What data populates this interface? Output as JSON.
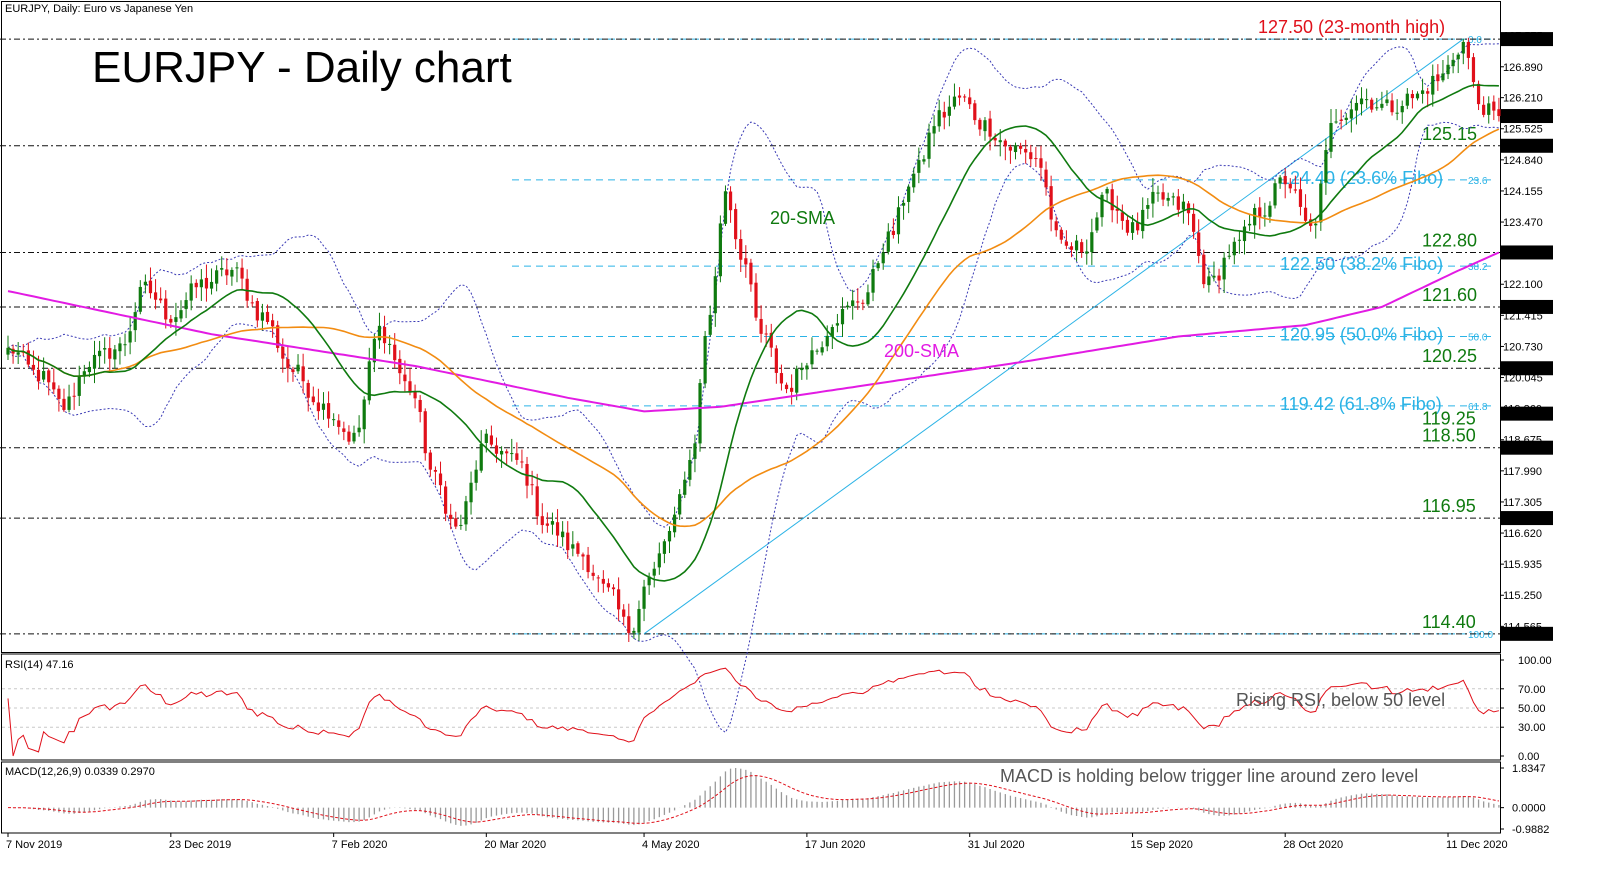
{
  "header": "EURJPY, Daily:  Euro vs Japanese Yen",
  "chart_title": "EURJPY - Daily chart",
  "colors": {
    "bull": "#0f7a0f",
    "bear": "#e0101a",
    "sma20": "#0f7a0f",
    "sma50": "#f28c12",
    "sma200": "#e21be3",
    "bollinger": "#3b3bb5",
    "fibo": "#2bb3e6",
    "level": "#111111",
    "rsi": "#e0101a",
    "macd_hist": "#9a9a9a",
    "macd_signal": "#e0101a",
    "annotation_green": "#0f7a0f",
    "annotation_red": "#e0101a",
    "annotation_blue": "#2bb3e6",
    "annotation_magenta": "#e21be3",
    "annotation_gray": "#555555"
  },
  "chart_data": [
    {
      "type": "candlestick",
      "title": "EURJPY - Daily chart",
      "ylim": [
        114.0,
        127.7
      ],
      "price_axis_ticks": [
        "127.575",
        "126.890",
        "126.210",
        "125.525",
        "124.840",
        "124.155",
        "123.470",
        "122.785",
        "122.100",
        "121.415",
        "120.730",
        "120.045",
        "119.360",
        "118.675",
        "117.990",
        "117.305",
        "116.620",
        "115.935",
        "115.250",
        "114.565"
      ],
      "x_ticks": [
        "7 Nov 2019",
        "23 Dec 2019",
        "7 Feb 2020",
        "20 Mar 2020",
        "4 May 2020",
        "17 Jun 2020",
        "31 Jul 2020",
        "15 Sep 2020",
        "28 Oct 2020",
        "11 Dec 2020"
      ],
      "x_tick_index": [
        0,
        32,
        64,
        94,
        125,
        157,
        189,
        221,
        251,
        283
      ],
      "anchors": [
        [
          0,
          120.7
        ],
        [
          6,
          120.1
        ],
        [
          11,
          119.4
        ],
        [
          16,
          120.4
        ],
        [
          22,
          120.7
        ],
        [
          27,
          122.0
        ],
        [
          32,
          121.4
        ],
        [
          38,
          122.1
        ],
        [
          44,
          122.4
        ],
        [
          50,
          121.4
        ],
        [
          56,
          120.2
        ],
        [
          62,
          119.4
        ],
        [
          68,
          118.7
        ],
        [
          73,
          121.1
        ],
        [
          79,
          119.8
        ],
        [
          84,
          117.8
        ],
        [
          88,
          116.7
        ],
        [
          94,
          118.6
        ],
        [
          100,
          118.2
        ],
        [
          106,
          116.8
        ],
        [
          112,
          116.2
        ],
        [
          118,
          115.3
        ],
        [
          122,
          114.5
        ],
        [
          126,
          115.6
        ],
        [
          130,
          116.6
        ],
        [
          134,
          118.2
        ],
        [
          138,
          121.5
        ],
        [
          141,
          124.2
        ],
        [
          144,
          122.8
        ],
        [
          148,
          121.0
        ],
        [
          153,
          119.8
        ],
        [
          158,
          120.6
        ],
        [
          163,
          121.4
        ],
        [
          168,
          121.8
        ],
        [
          173,
          123.1
        ],
        [
          178,
          124.5
        ],
        [
          183,
          125.8
        ],
        [
          187,
          126.2
        ],
        [
          192,
          125.6
        ],
        [
          197,
          125.1
        ],
        [
          202,
          124.9
        ],
        [
          207,
          122.9
        ],
        [
          211,
          122.9
        ],
        [
          216,
          124.0
        ],
        [
          221,
          123.3
        ],
        [
          226,
          124.0
        ],
        [
          231,
          123.8
        ],
        [
          236,
          122.1
        ],
        [
          241,
          122.9
        ],
        [
          246,
          123.7
        ],
        [
          251,
          124.4
        ],
        [
          256,
          123.3
        ],
        [
          261,
          125.8
        ],
        [
          266,
          126.2
        ],
        [
          271,
          126.0
        ],
        [
          276,
          126.2
        ],
        [
          281,
          126.6
        ],
        [
          286,
          127.4
        ],
        [
          289,
          126.1
        ],
        [
          292,
          125.8
        ]
      ],
      "last_close": 125.805,
      "levels": [
        {
          "price": 127.5,
          "label": "127.50 (23-month high)",
          "kind": "resistance-high"
        },
        {
          "price": 125.15,
          "label": "125.15",
          "kind": "support"
        },
        {
          "price": 122.8,
          "label": "122.80",
          "kind": "support"
        },
        {
          "price": 121.6,
          "label": "121.60",
          "kind": "support"
        },
        {
          "price": 120.25,
          "label": "120.25",
          "kind": "support"
        },
        {
          "price": 118.5,
          "label": "118.50",
          "kind": "support"
        },
        {
          "price": 116.95,
          "label": "116.95",
          "kind": "support"
        },
        {
          "price": 114.4,
          "label": "114.40",
          "kind": "support"
        }
      ],
      "level_axis_labels": [
        "127.500",
        "125.150",
        "122.800",
        "121.600",
        "120.250",
        "119.250",
        "118.500",
        "116.950",
        "114.400"
      ],
      "fibonacci": [
        {
          "price": 127.5,
          "ratio": "0.0"
        },
        {
          "price": 124.4,
          "ratio": "23.6",
          "label": "124.40 (23.6% Fibo)"
        },
        {
          "price": 122.5,
          "ratio": "38.2",
          "label": "122.50 (38.2% Fibo)"
        },
        {
          "price": 120.95,
          "ratio": "50.0",
          "label": "120.95 (50.0% Fibo)"
        },
        {
          "price": 119.42,
          "ratio": "61.8",
          "label": "119.42 (61.8% Fibo)"
        },
        {
          "price": 114.4,
          "ratio": "100.0"
        }
      ],
      "extra_label": {
        "price": 119.25,
        "label": "119.25"
      },
      "trendline": {
        "from": [
          125,
          114.4
        ],
        "to": [
          286,
          127.5
        ]
      },
      "indicators": {
        "sma20_label": "20-SMA",
        "sma200_label": "200-SMA"
      }
    },
    {
      "type": "line",
      "title": "RSI(14) 47.16",
      "ylim": [
        0,
        100
      ],
      "y_ticks": [
        "100.00",
        "70.00",
        "50.00",
        "30.00",
        "0.00"
      ],
      "reference_lines": [
        70,
        50,
        30
      ],
      "annotation": "Rising RSI, below 50 level",
      "last": 47.16
    },
    {
      "type": "bar",
      "title": "MACD(12,26,9) 0.0339 0.2970",
      "y_ticks": [
        "1.8347",
        "0.0000",
        "-0.9882"
      ],
      "ylim": [
        -0.9882,
        1.8347
      ],
      "annotation": "MACD is holding below trigger line around zero level",
      "macd_last": 0.0339,
      "signal_last": 0.297
    }
  ]
}
